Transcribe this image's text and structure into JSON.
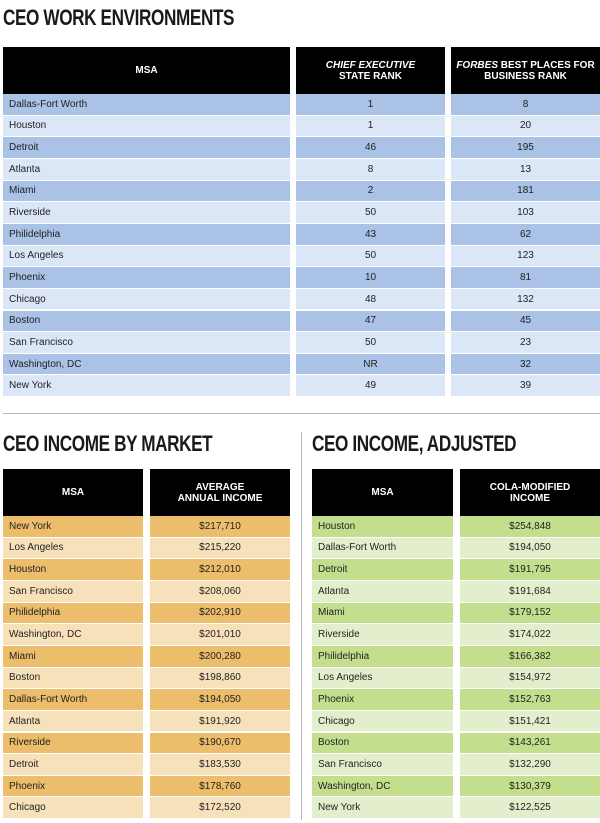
{
  "work": {
    "title": "CEO WORK ENVIRONMENTS",
    "headers": {
      "msa": "MSA",
      "chief_italic": "CHIEF EXECUTIVE",
      "chief_rest": "STATE RANK",
      "forbes_italic": "FORBES",
      "forbes_rest1": " BEST PLACES FOR",
      "forbes_rest2": "BUSINESS RANK"
    },
    "colors": {
      "dark": "#a9c2e6",
      "light": "#dbe6f6"
    },
    "rows": [
      {
        "msa": "Dallas-Fort Worth",
        "ce": "1",
        "forbes": "8"
      },
      {
        "msa": "Houston",
        "ce": "1",
        "forbes": "20"
      },
      {
        "msa": "Detroit",
        "ce": "46",
        "forbes": "195"
      },
      {
        "msa": "Atlanta",
        "ce": "8",
        "forbes": "13"
      },
      {
        "msa": "Miami",
        "ce": "2",
        "forbes": "181"
      },
      {
        "msa": "Riverside",
        "ce": "50",
        "forbes": "103"
      },
      {
        "msa": "Philidelphia",
        "ce": "43",
        "forbes": "62"
      },
      {
        "msa": "Los Angeles",
        "ce": "50",
        "forbes": "123"
      },
      {
        "msa": "Phoenix",
        "ce": "10",
        "forbes": "81"
      },
      {
        "msa": "Chicago",
        "ce": "48",
        "forbes": "132"
      },
      {
        "msa": "Boston",
        "ce": "47",
        "forbes": "45"
      },
      {
        "msa": "San Francisco",
        "ce": "50",
        "forbes": "23"
      },
      {
        "msa": "Washington, DC",
        "ce": "NR",
        "forbes": "32"
      },
      {
        "msa": "New York",
        "ce": "49",
        "forbes": "39"
      }
    ]
  },
  "income": {
    "title": "CEO INCOME BY MARKET",
    "headers": {
      "msa": "MSA",
      "value1": "AVERAGE",
      "value2": "ANNUAL INCOME"
    },
    "colors": {
      "dark": "#ecbd6b",
      "light": "#f7e1bb"
    },
    "rows": [
      {
        "msa": "New York",
        "value": "$217,710"
      },
      {
        "msa": "Los Angeles",
        "value": "$215,220"
      },
      {
        "msa": "Houston",
        "value": "$212,010"
      },
      {
        "msa": "San Francisco",
        "value": "$208,060"
      },
      {
        "msa": "Philidelphia",
        "value": "$202,910"
      },
      {
        "msa": "Washington, DC",
        "value": "$201,010"
      },
      {
        "msa": "Miami",
        "value": "$200,280"
      },
      {
        "msa": "Boston",
        "value": "$198,860"
      },
      {
        "msa": "Dallas-Fort Worth",
        "value": "$194,050"
      },
      {
        "msa": "Atlanta",
        "value": "$191,920"
      },
      {
        "msa": "Riverside",
        "value": "$190,670"
      },
      {
        "msa": "Detroit",
        "value": "$183,530"
      },
      {
        "msa": "Phoenix",
        "value": "$178,760"
      },
      {
        "msa": "Chicago",
        "value": "$172,520"
      }
    ]
  },
  "adjusted": {
    "title": "CEO INCOME, ADJUSTED",
    "headers": {
      "msa": "MSA",
      "value1": "COLA-MODIFIED",
      "value2": "INCOME"
    },
    "colors": {
      "dark": "#c3df8e",
      "light": "#e3efcc"
    },
    "rows": [
      {
        "msa": "Houston",
        "value": "$254,848"
      },
      {
        "msa": "Dallas-Fort Worth",
        "value": "$194,050"
      },
      {
        "msa": "Detroit",
        "value": "$191,795"
      },
      {
        "msa": "Atlanta",
        "value": "$191,684"
      },
      {
        "msa": "Miami",
        "value": "$179,152"
      },
      {
        "msa": "Riverside",
        "value": "$174,022"
      },
      {
        "msa": "Philidelphia",
        "value": "$166,382"
      },
      {
        "msa": "Los Angeles",
        "value": "$154,972"
      },
      {
        "msa": "Phoenix",
        "value": "$152,763"
      },
      {
        "msa": "Chicago",
        "value": "$151,421"
      },
      {
        "msa": "Boston",
        "value": "$143,261"
      },
      {
        "msa": "San Francisco",
        "value": "$132,290"
      },
      {
        "msa": "Washington, DC",
        "value": "$130,379"
      },
      {
        "msa": "New York",
        "value": "$122,525"
      }
    ]
  }
}
